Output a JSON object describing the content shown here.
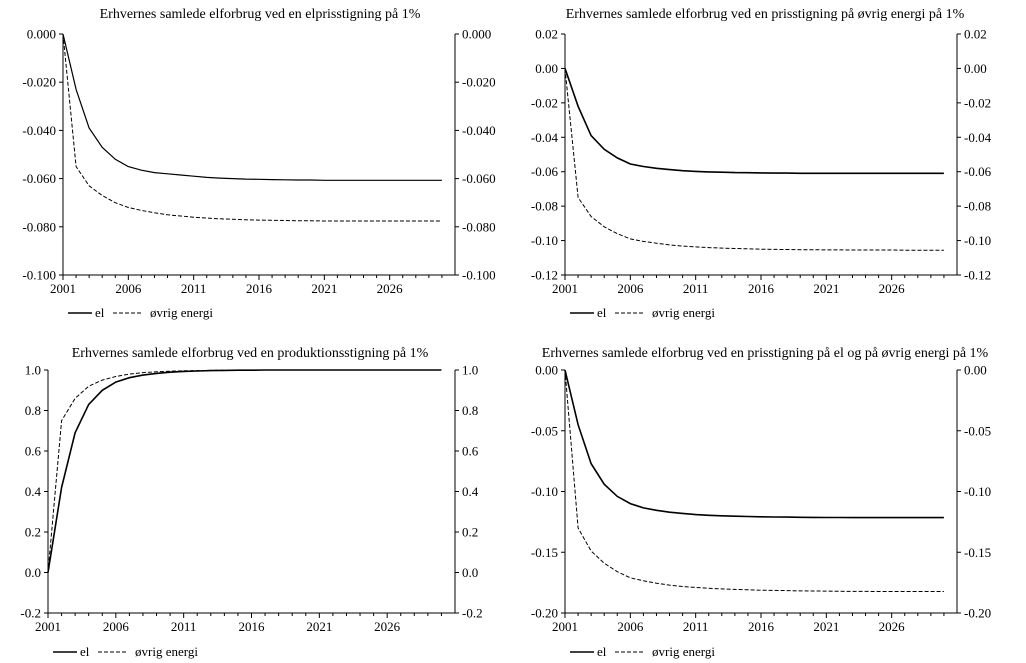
{
  "chart_data": [
    {
      "type": "line",
      "title": "Erhvernes samlede elforbrug ved en elprisstigning på 1%",
      "x": [
        2001,
        2002,
        2003,
        2004,
        2005,
        2006,
        2007,
        2008,
        2009,
        2010,
        2011,
        2012,
        2013,
        2014,
        2015,
        2016,
        2017,
        2018,
        2019,
        2020,
        2021,
        2022,
        2023,
        2024,
        2025,
        2026,
        2027,
        2028,
        2029,
        2030
      ],
      "xticks": [
        "2001",
        "2006",
        "2011",
        "2016",
        "2021",
        "2026"
      ],
      "xlim": [
        2001,
        2031
      ],
      "ylim": [
        -0.1,
        0.0
      ],
      "yticks": [
        "0.000",
        "-0.020",
        "-0.040",
        "-0.060",
        "-0.080",
        "-0.100"
      ],
      "series": [
        {
          "name": "el",
          "style": "solid",
          "width": 1.2,
          "values": [
            0.0,
            -0.023,
            -0.039,
            -0.047,
            -0.052,
            -0.055,
            -0.0565,
            -0.0575,
            -0.058,
            -0.0585,
            -0.059,
            -0.0595,
            -0.0598,
            -0.06,
            -0.0602,
            -0.0603,
            -0.0604,
            -0.0605,
            -0.0606,
            -0.0606,
            -0.0607,
            -0.0607,
            -0.0607,
            -0.0607,
            -0.0607,
            -0.0607,
            -0.0607,
            -0.0607,
            -0.0607,
            -0.0607
          ]
        },
        {
          "name": "øvrig energi",
          "style": "dashed",
          "width": 1,
          "values": [
            0.0,
            -0.055,
            -0.063,
            -0.067,
            -0.07,
            -0.072,
            -0.0732,
            -0.0742,
            -0.075,
            -0.0755,
            -0.076,
            -0.0764,
            -0.0767,
            -0.0769,
            -0.0771,
            -0.0772,
            -0.0773,
            -0.0774,
            -0.0775,
            -0.0775,
            -0.0776,
            -0.0776,
            -0.0776,
            -0.0776,
            -0.0776,
            -0.0776,
            -0.0776,
            -0.0776,
            -0.0776,
            -0.0776
          ]
        }
      ]
    },
    {
      "type": "line",
      "title": "Erhvernes samlede elforbrug ved en prisstigning på øvrig energi på 1%",
      "x": [
        2001,
        2002,
        2003,
        2004,
        2005,
        2006,
        2007,
        2008,
        2009,
        2010,
        2011,
        2012,
        2013,
        2014,
        2015,
        2016,
        2017,
        2018,
        2019,
        2020,
        2021,
        2022,
        2023,
        2024,
        2025,
        2026,
        2027,
        2028,
        2029,
        2030
      ],
      "xticks": [
        "2001",
        "2006",
        "2011",
        "2016",
        "2021",
        "2026"
      ],
      "xlim": [
        2001,
        2031
      ],
      "ylim": [
        -0.12,
        0.02
      ],
      "yticks": [
        "0.02",
        "0.00",
        "-0.02",
        "-0.04",
        "-0.06",
        "-0.08",
        "-0.10",
        "-0.12"
      ],
      "series": [
        {
          "name": "el",
          "style": "solid",
          "width": 1.6,
          "values": [
            0.0,
            -0.022,
            -0.039,
            -0.047,
            -0.052,
            -0.0555,
            -0.057,
            -0.058,
            -0.0588,
            -0.0594,
            -0.0598,
            -0.0601,
            -0.0603,
            -0.0605,
            -0.0606,
            -0.0607,
            -0.0608,
            -0.0608,
            -0.0609,
            -0.0609,
            -0.0609,
            -0.0609,
            -0.0609,
            -0.0609,
            -0.0609,
            -0.0609,
            -0.0609,
            -0.0609,
            -0.0609,
            -0.0609
          ]
        },
        {
          "name": "øvrig energi",
          "style": "dashed",
          "width": 1,
          "values": [
            0.0,
            -0.075,
            -0.086,
            -0.092,
            -0.096,
            -0.099,
            -0.1005,
            -0.1015,
            -0.1025,
            -0.1032,
            -0.1037,
            -0.1041,
            -0.1044,
            -0.1046,
            -0.1048,
            -0.105,
            -0.1051,
            -0.1052,
            -0.1053,
            -0.1053,
            -0.1054,
            -0.1054,
            -0.1055,
            -0.1055,
            -0.1055,
            -0.1055,
            -0.1056,
            -0.1056,
            -0.1056,
            -0.1056
          ]
        }
      ]
    },
    {
      "type": "line",
      "title": "Erhvernes samlede elforbrug ved en produktionsstigning på 1%",
      "x": [
        2001,
        2002,
        2003,
        2004,
        2005,
        2006,
        2007,
        2008,
        2009,
        2010,
        2011,
        2012,
        2013,
        2014,
        2015,
        2016,
        2017,
        2018,
        2019,
        2020,
        2021,
        2022,
        2023,
        2024,
        2025,
        2026,
        2027,
        2028,
        2029,
        2030
      ],
      "xticks": [
        "2001",
        "2006",
        "2011",
        "2016",
        "2021",
        "2026"
      ],
      "xlim": [
        2001,
        2031
      ],
      "ylim": [
        -0.2,
        1.0
      ],
      "yticks": [
        "1.0",
        "0.8",
        "0.6",
        "0.4",
        "0.2",
        "0.0",
        "-0.2"
      ],
      "series": [
        {
          "name": "el",
          "style": "solid",
          "width": 1.6,
          "values": [
            0.0,
            0.42,
            0.69,
            0.83,
            0.9,
            0.94,
            0.962,
            0.975,
            0.983,
            0.989,
            0.993,
            0.995,
            0.997,
            0.998,
            0.999,
            0.999,
            1.0,
            1.0,
            1.0,
            1.0,
            1.0,
            1.0,
            1.0,
            1.0,
            1.0,
            1.0,
            1.0,
            1.0,
            1.0,
            1.0
          ]
        },
        {
          "name": "øvrig energi",
          "style": "dashed",
          "width": 1,
          "values": [
            0.0,
            0.75,
            0.86,
            0.92,
            0.95,
            0.968,
            0.98,
            0.987,
            0.991,
            0.994,
            0.996,
            0.997,
            0.998,
            0.999,
            0.999,
            1.0,
            1.0,
            1.0,
            1.0,
            1.0,
            1.0,
            1.0,
            1.0,
            1.0,
            1.0,
            1.0,
            1.0,
            1.0,
            1.0,
            1.0
          ]
        }
      ]
    },
    {
      "type": "line",
      "title": "Erhvernes samlede elforbrug ved en prisstigning på el og på øvrig energi på 1%",
      "x": [
        2001,
        2002,
        2003,
        2004,
        2005,
        2006,
        2007,
        2008,
        2009,
        2010,
        2011,
        2012,
        2013,
        2014,
        2015,
        2016,
        2017,
        2018,
        2019,
        2020,
        2021,
        2022,
        2023,
        2024,
        2025,
        2026,
        2027,
        2028,
        2029,
        2030
      ],
      "xticks": [
        "2001",
        "2006",
        "2011",
        "2016",
        "2021",
        "2026"
      ],
      "xlim": [
        2001,
        2031
      ],
      "ylim": [
        -0.2,
        0.0
      ],
      "yticks": [
        "0.00",
        "-0.05",
        "-0.10",
        "-0.15",
        "-0.20"
      ],
      "series": [
        {
          "name": "el",
          "style": "solid",
          "width": 1.6,
          "values": [
            0.0,
            -0.045,
            -0.077,
            -0.094,
            -0.104,
            -0.11,
            -0.1135,
            -0.1155,
            -0.117,
            -0.118,
            -0.119,
            -0.1196,
            -0.12,
            -0.1203,
            -0.1206,
            -0.1208,
            -0.121,
            -0.1211,
            -0.1212,
            -0.1213,
            -0.1214,
            -0.1214,
            -0.1215,
            -0.1215,
            -0.1215,
            -0.1215,
            -0.1215,
            -0.1215,
            -0.1215,
            -0.1215
          ]
        },
        {
          "name": "øvrig energi",
          "style": "dashed",
          "width": 1,
          "values": [
            0.0,
            -0.13,
            -0.149,
            -0.159,
            -0.166,
            -0.171,
            -0.1735,
            -0.1755,
            -0.177,
            -0.1782,
            -0.179,
            -0.1797,
            -0.1802,
            -0.1806,
            -0.1809,
            -0.1812,
            -0.1814,
            -0.1816,
            -0.1818,
            -0.1819,
            -0.182,
            -0.1821,
            -0.1822,
            -0.1822,
            -0.1823,
            -0.1823,
            -0.1823,
            -0.1823,
            -0.1823,
            -0.1823
          ]
        }
      ]
    }
  ],
  "legend": {
    "el": "el",
    "other": "øvrig energi"
  }
}
